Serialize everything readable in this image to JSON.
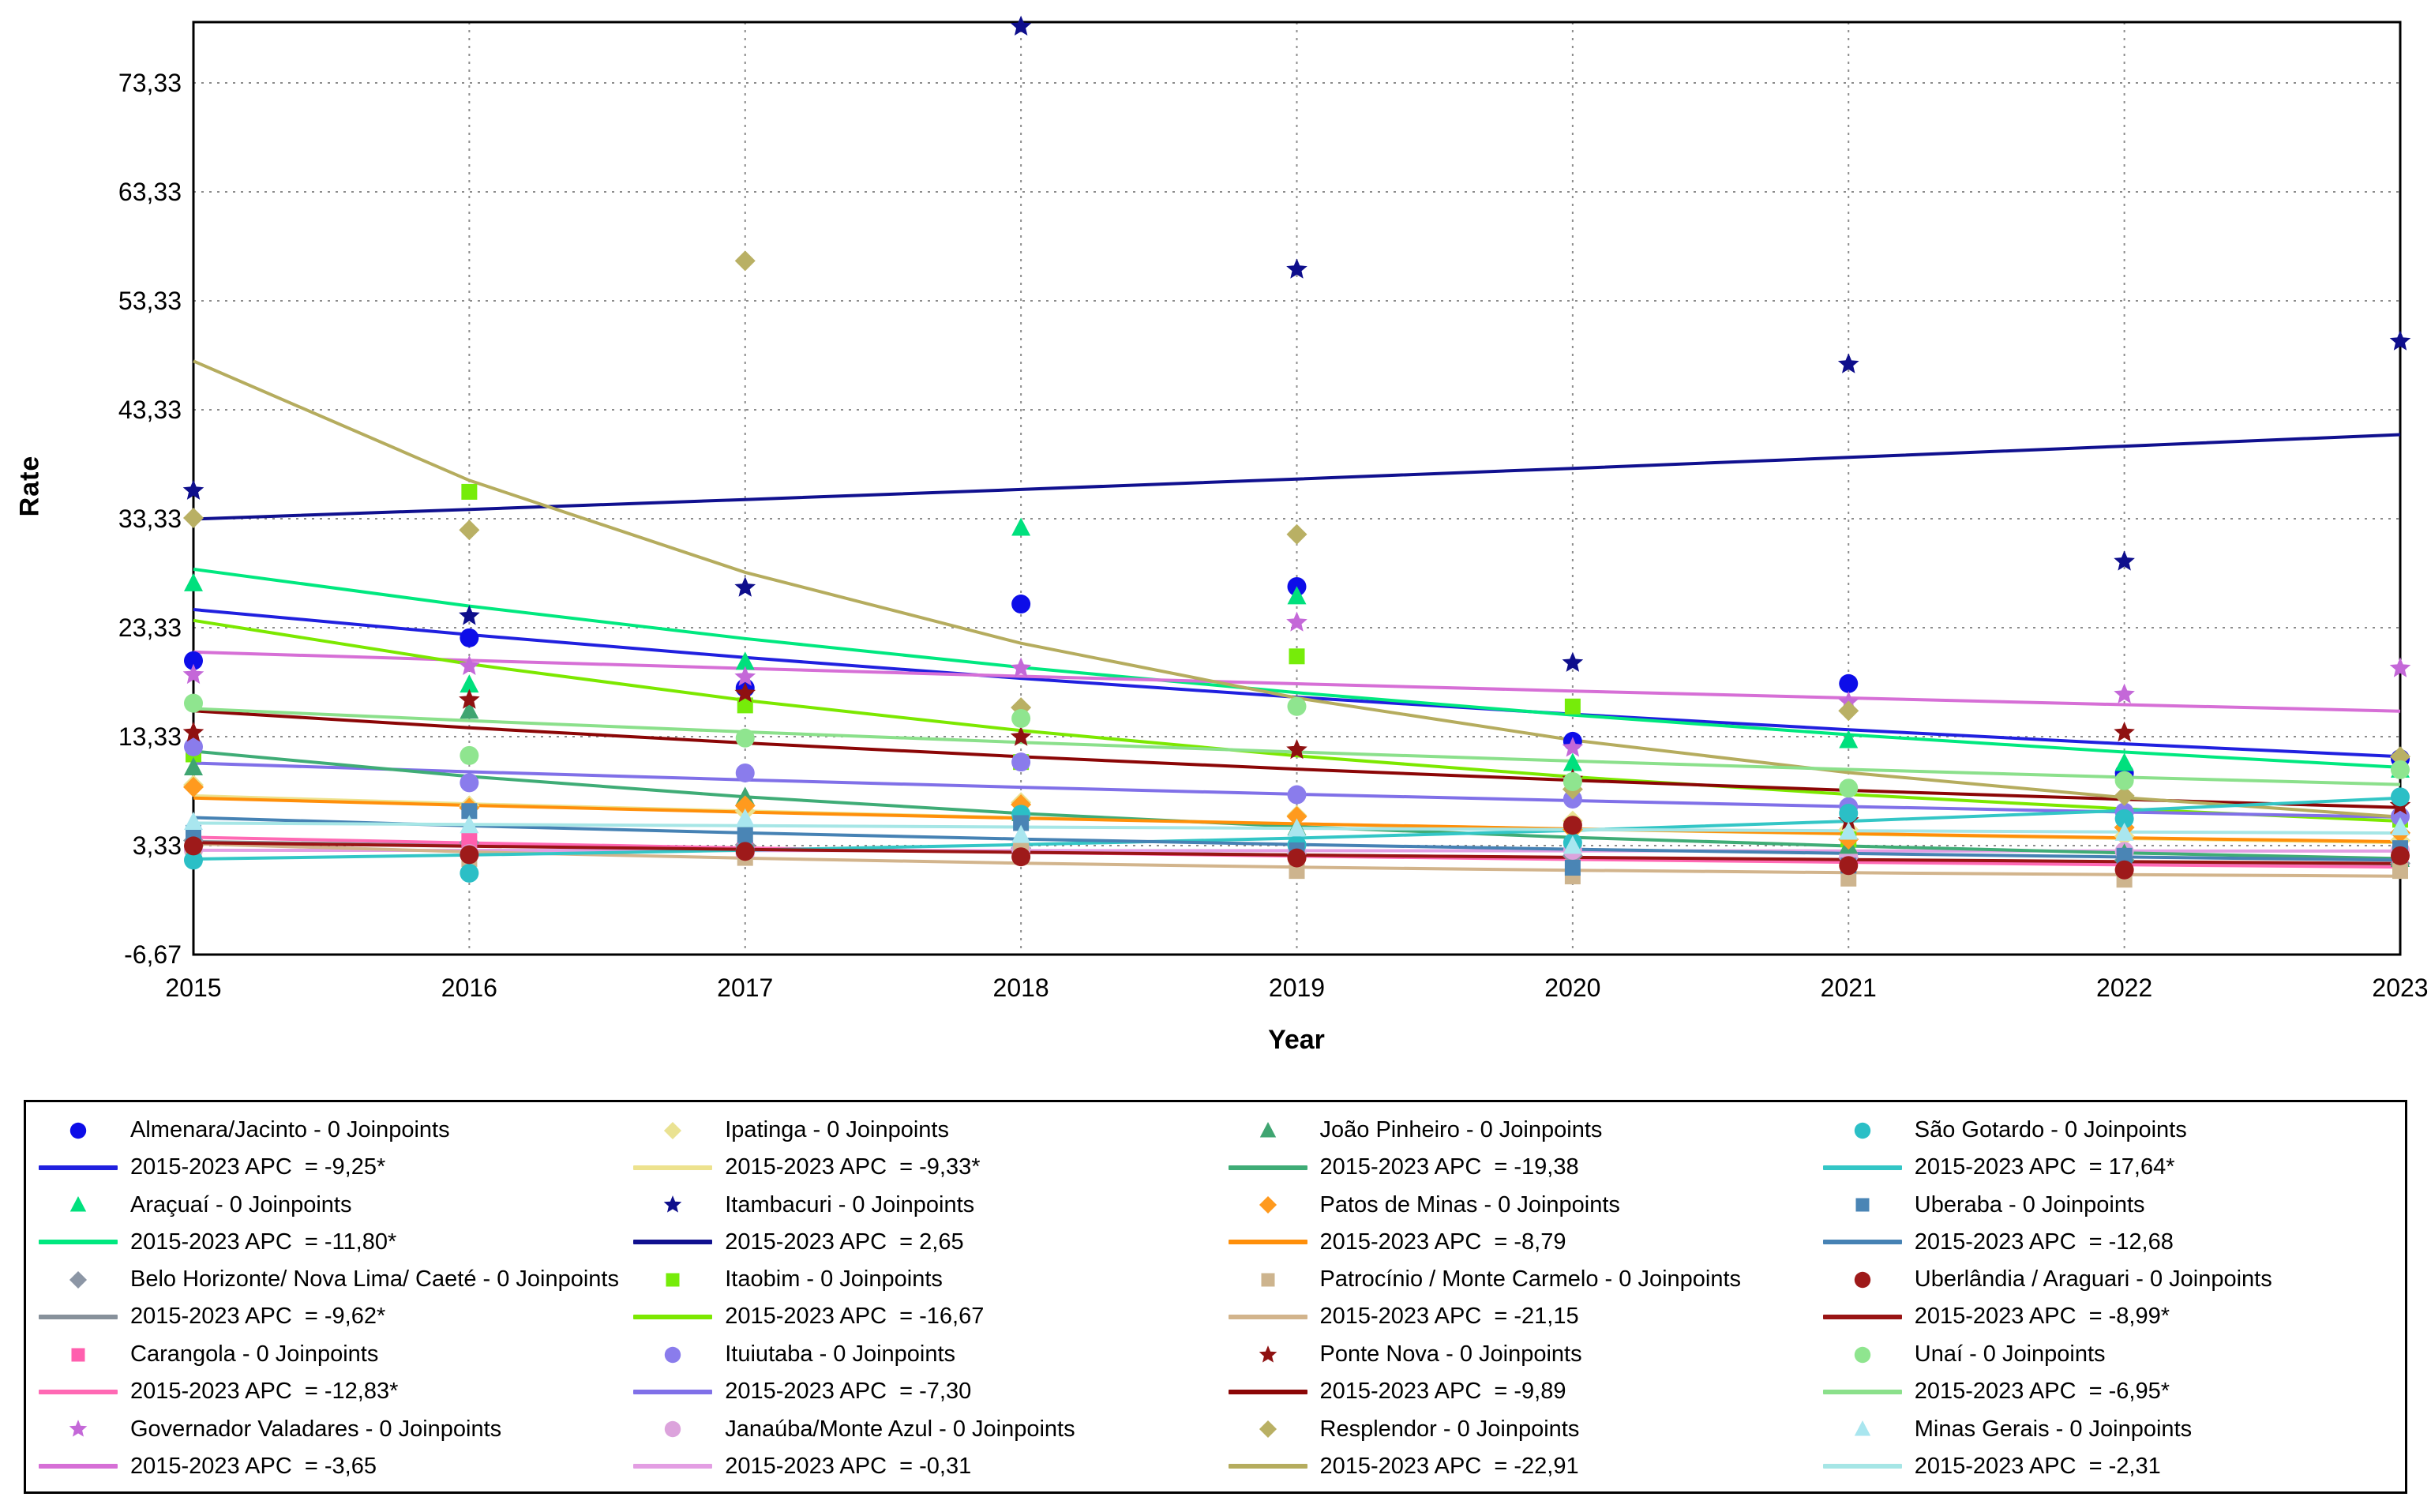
{
  "page": {
    "background": "#ffffff"
  },
  "figure": {
    "y_axis": {
      "label": "Rate",
      "tick_labels": [
        "73,33",
        "63,33",
        "53,33",
        "43,33",
        "33,33",
        "23,33",
        "13,33",
        "3,33",
        "-6,67"
      ],
      "tick_values": [
        73.33,
        63.33,
        53.33,
        43.33,
        33.33,
        23.33,
        13.33,
        3.33,
        -6.67
      ]
    },
    "x_axis": {
      "label": "Year",
      "tick_labels": [
        "2015",
        "2016",
        "2017",
        "2018",
        "2019",
        "2020",
        "2021",
        "2022",
        "2023"
      ],
      "tick_values": [
        2015,
        2016,
        2017,
        2018,
        2019,
        2020,
        2021,
        2022,
        2023
      ]
    },
    "gridline_color": "#8C8C8C",
    "border_color": "#000000"
  },
  "legend": {
    "columns": 4,
    "rows": 5,
    "joinpoints_suffix": "0 Joinpoints",
    "apc_prefix": "2015-2023 APC  ="
  },
  "chart_data": {
    "type": "scatter",
    "subtype": "joinpoint-regression-trends",
    "title": "",
    "xlabel": "Year",
    "ylabel": "Rate",
    "x": [
      2015,
      2016,
      2017,
      2018,
      2019,
      2020,
      2021,
      2022,
      2023
    ],
    "ylim": [
      -6.67,
      78.9
    ],
    "grid": "dotted",
    "legend_position": "bottom",
    "series": [
      {
        "id": "almenara",
        "name": "Almenara/Jacinto",
        "marker": "circle",
        "color": "#0D0DE8",
        "line_color": "#2020DF",
        "apc": -9.25,
        "apc_label": "-9,25*",
        "fit_2015": 25.0,
        "observed": [
          20.3,
          22.4,
          17.8,
          25.5,
          27.1,
          12.9,
          18.2,
          10.0,
          11.3
        ]
      },
      {
        "id": "aracuai",
        "name": "Araçuaí",
        "marker": "triangle",
        "color": "#00E07D",
        "line_color": "#00E87F",
        "apc": -11.8,
        "apc_label": "-11,80*",
        "fit_2015": 28.7,
        "observed": [
          27.4,
          18.1,
          20.2,
          32.5,
          26.2,
          10.9,
          13.0,
          10.9,
          10.3
        ]
      },
      {
        "id": "belo-horizonte",
        "name": "Belo Horizonte/ Nova Lima/ Caeté",
        "marker": "diamond",
        "color": "#8C96A5",
        "line_color": "#87919B",
        "apc": -9.62,
        "apc_label": "-9,62*",
        "fit_2015": 3.7,
        "observed": [
          3.8,
          3.6,
          3.4,
          3.1,
          2.6,
          2.4,
          2.2,
          2.0,
          1.7
        ]
      },
      {
        "id": "carangola",
        "name": "Carangola",
        "marker": "square",
        "color": "#FF5FAE",
        "line_color": "#FF69B4",
        "apc": -12.83,
        "apc_label": "-12,83*",
        "fit_2015": 4.1,
        "observed": [
          4.3,
          3.8,
          3.1,
          2.8,
          2.4,
          3.3,
          1.9,
          1.6,
          1.5
        ]
      },
      {
        "id": "governador-valadares",
        "name": "Governador Valadares",
        "marker": "star",
        "color": "#C468D8",
        "line_color": "#D66FD6",
        "apc": -3.65,
        "apc_label": "-3,65",
        "fit_2015": 21.1,
        "observed": [
          19.0,
          19.8,
          18.8,
          19.6,
          23.8,
          12.3,
          16.5,
          17.2,
          19.6
        ]
      },
      {
        "id": "ipatinga",
        "name": "Ipatinga",
        "marker": "diamond",
        "color": "#EAE292",
        "line_color": "#EDE28E",
        "apc": -9.33,
        "apc_label": "-9,33*",
        "fit_2015": 7.9,
        "observed": [
          8.9,
          7.0,
          6.5,
          7.3,
          6.1,
          5.6,
          4.8,
          4.2,
          3.8
        ]
      },
      {
        "id": "itambacuri",
        "name": "Itambacuri",
        "marker": "star",
        "color": "#0E0E8C",
        "line_color": "#10108F",
        "apc": 2.65,
        "apc_label": "2,65",
        "fit_2015": 33.3,
        "observed": [
          35.9,
          24.4,
          27.0,
          78.5,
          56.2,
          20.1,
          47.5,
          29.4,
          49.6
        ]
      },
      {
        "id": "itaobim",
        "name": "Itaobim",
        "marker": "square",
        "color": "#76EC09",
        "line_color": "#7CE800",
        "apc": -16.67,
        "apc_label": "-16,67",
        "fit_2015": 24.0,
        "observed": [
          11.7,
          35.8,
          16.2,
          11.0,
          20.7,
          16.1,
          3.9,
          6.1,
          5.7
        ]
      },
      {
        "id": "ituiutaba",
        "name": "Ituiutaba",
        "marker": "circle",
        "color": "#8A7CEC",
        "line_color": "#8070E8",
        "apc": -7.3,
        "apc_label": "-7,30",
        "fit_2015": 10.9,
        "observed": [
          12.4,
          9.1,
          10.0,
          11.0,
          8.0,
          7.6,
          6.9,
          6.4,
          6.0
        ]
      },
      {
        "id": "janauba",
        "name": "Janaúba/Monte Azul",
        "marker": "circle",
        "color": "#DCA3DC",
        "line_color": "#E39EE3",
        "apc": -0.31,
        "apc_label": "-0,31",
        "fit_2015": 2.9,
        "observed": [
          2.9,
          2.6,
          2.6,
          2.9,
          2.8,
          2.9,
          2.4,
          2.8,
          2.9
        ]
      },
      {
        "id": "joao-pinheiro",
        "name": "João Pinheiro",
        "marker": "triangle",
        "color": "#3FA571",
        "line_color": "#3FAC76",
        "apc": -19.38,
        "apc_label": "-19,38",
        "fit_2015": 12.0,
        "observed": [
          10.5,
          15.7,
          7.8,
          6.3,
          5.0,
          4.0,
          3.3,
          2.6,
          2.1
        ]
      },
      {
        "id": "patos-de-minas",
        "name": "Patos de Minas",
        "marker": "diamond",
        "color": "#FF9A1E",
        "line_color": "#FF8F0A",
        "apc": -8.79,
        "apc_label": "-8,79",
        "fit_2015": 7.7,
        "observed": [
          8.7,
          6.8,
          7.0,
          7.1,
          6.0,
          4.8,
          3.9,
          5.0,
          4.5
        ]
      },
      {
        "id": "patrocinio",
        "name": "Patrocínio / Monte Carmelo",
        "marker": "square",
        "color": "#CDB48E",
        "line_color": "#D2B48C",
        "apc": -21.15,
        "apc_label": "-21,15",
        "fit_2015": 3.5,
        "observed": [
          2.6,
          2.1,
          2.2,
          3.0,
          1.0,
          0.5,
          0.3,
          0.2,
          1.0
        ]
      },
      {
        "id": "ponte-nova",
        "name": "Ponte Nova",
        "marker": "star",
        "color": "#8F1111",
        "line_color": "#8B0606",
        "apc": -9.89,
        "apc_label": "-9,89",
        "fit_2015": 15.7,
        "observed": [
          13.7,
          16.7,
          17.3,
          13.3,
          12.1,
          9.4,
          5.6,
          13.7,
          7.0
        ]
      },
      {
        "id": "resplendor",
        "name": "Resplendor",
        "marker": "diamond",
        "color": "#B9B064",
        "line_color": "#B5AC5E",
        "apc": -22.91,
        "apc_label": "-22,91",
        "fit_2015": 47.8,
        "observed": [
          33.4,
          32.3,
          57.0,
          16.0,
          31.9,
          8.5,
          15.7,
          7.9,
          11.5
        ]
      },
      {
        "id": "sao-gotardo",
        "name": "São Gotardo",
        "marker": "circle",
        "color": "#2BBFC6",
        "line_color": "#33C6C6",
        "apc": 17.64,
        "apc_label": "17,64*",
        "fit_2015": 2.1,
        "observed": [
          2.0,
          0.8,
          2.9,
          6.2,
          3.4,
          3.6,
          6.3,
          5.8,
          7.8
        ]
      },
      {
        "id": "uberaba",
        "name": "Uberaba",
        "marker": "square",
        "color": "#4A85B5",
        "line_color": "#4682B4",
        "apc": -12.68,
        "apc_label": "-12,68",
        "fit_2015": 5.9,
        "observed": [
          4.5,
          6.5,
          4.3,
          5.4,
          2.9,
          1.3,
          1.5,
          2.4,
          3.1
        ]
      },
      {
        "id": "uberlandia",
        "name": "Uberlândia / Araguari",
        "marker": "circle",
        "color": "#9E1A1A",
        "line_color": "#991414",
        "apc": -8.99,
        "apc_label": "-8,99*",
        "fit_2015": 3.6,
        "observed": [
          3.3,
          2.5,
          2.8,
          2.3,
          2.2,
          5.2,
          1.5,
          1.1,
          2.4
        ]
      },
      {
        "id": "unai",
        "name": "Unaí",
        "marker": "circle",
        "color": "#8FE58F",
        "line_color": "#8BE08B",
        "apc": -6.95,
        "apc_label": "-6,95*",
        "fit_2015": 15.9,
        "observed": [
          16.4,
          11.6,
          13.2,
          15.0,
          16.1,
          9.2,
          8.6,
          9.3,
          10.3
        ]
      },
      {
        "id": "minas-gerais",
        "name": "Minas Gerais",
        "marker": "triangle",
        "color": "#A9E6EF",
        "line_color": "#A6E6E6",
        "apc": -2.31,
        "apc_label": "-2,31",
        "fit_2015": 5.4,
        "observed": [
          5.5,
          5.2,
          5.8,
          4.3,
          4.9,
          3.3,
          4.6,
          4.5,
          5.0
        ]
      }
    ]
  }
}
